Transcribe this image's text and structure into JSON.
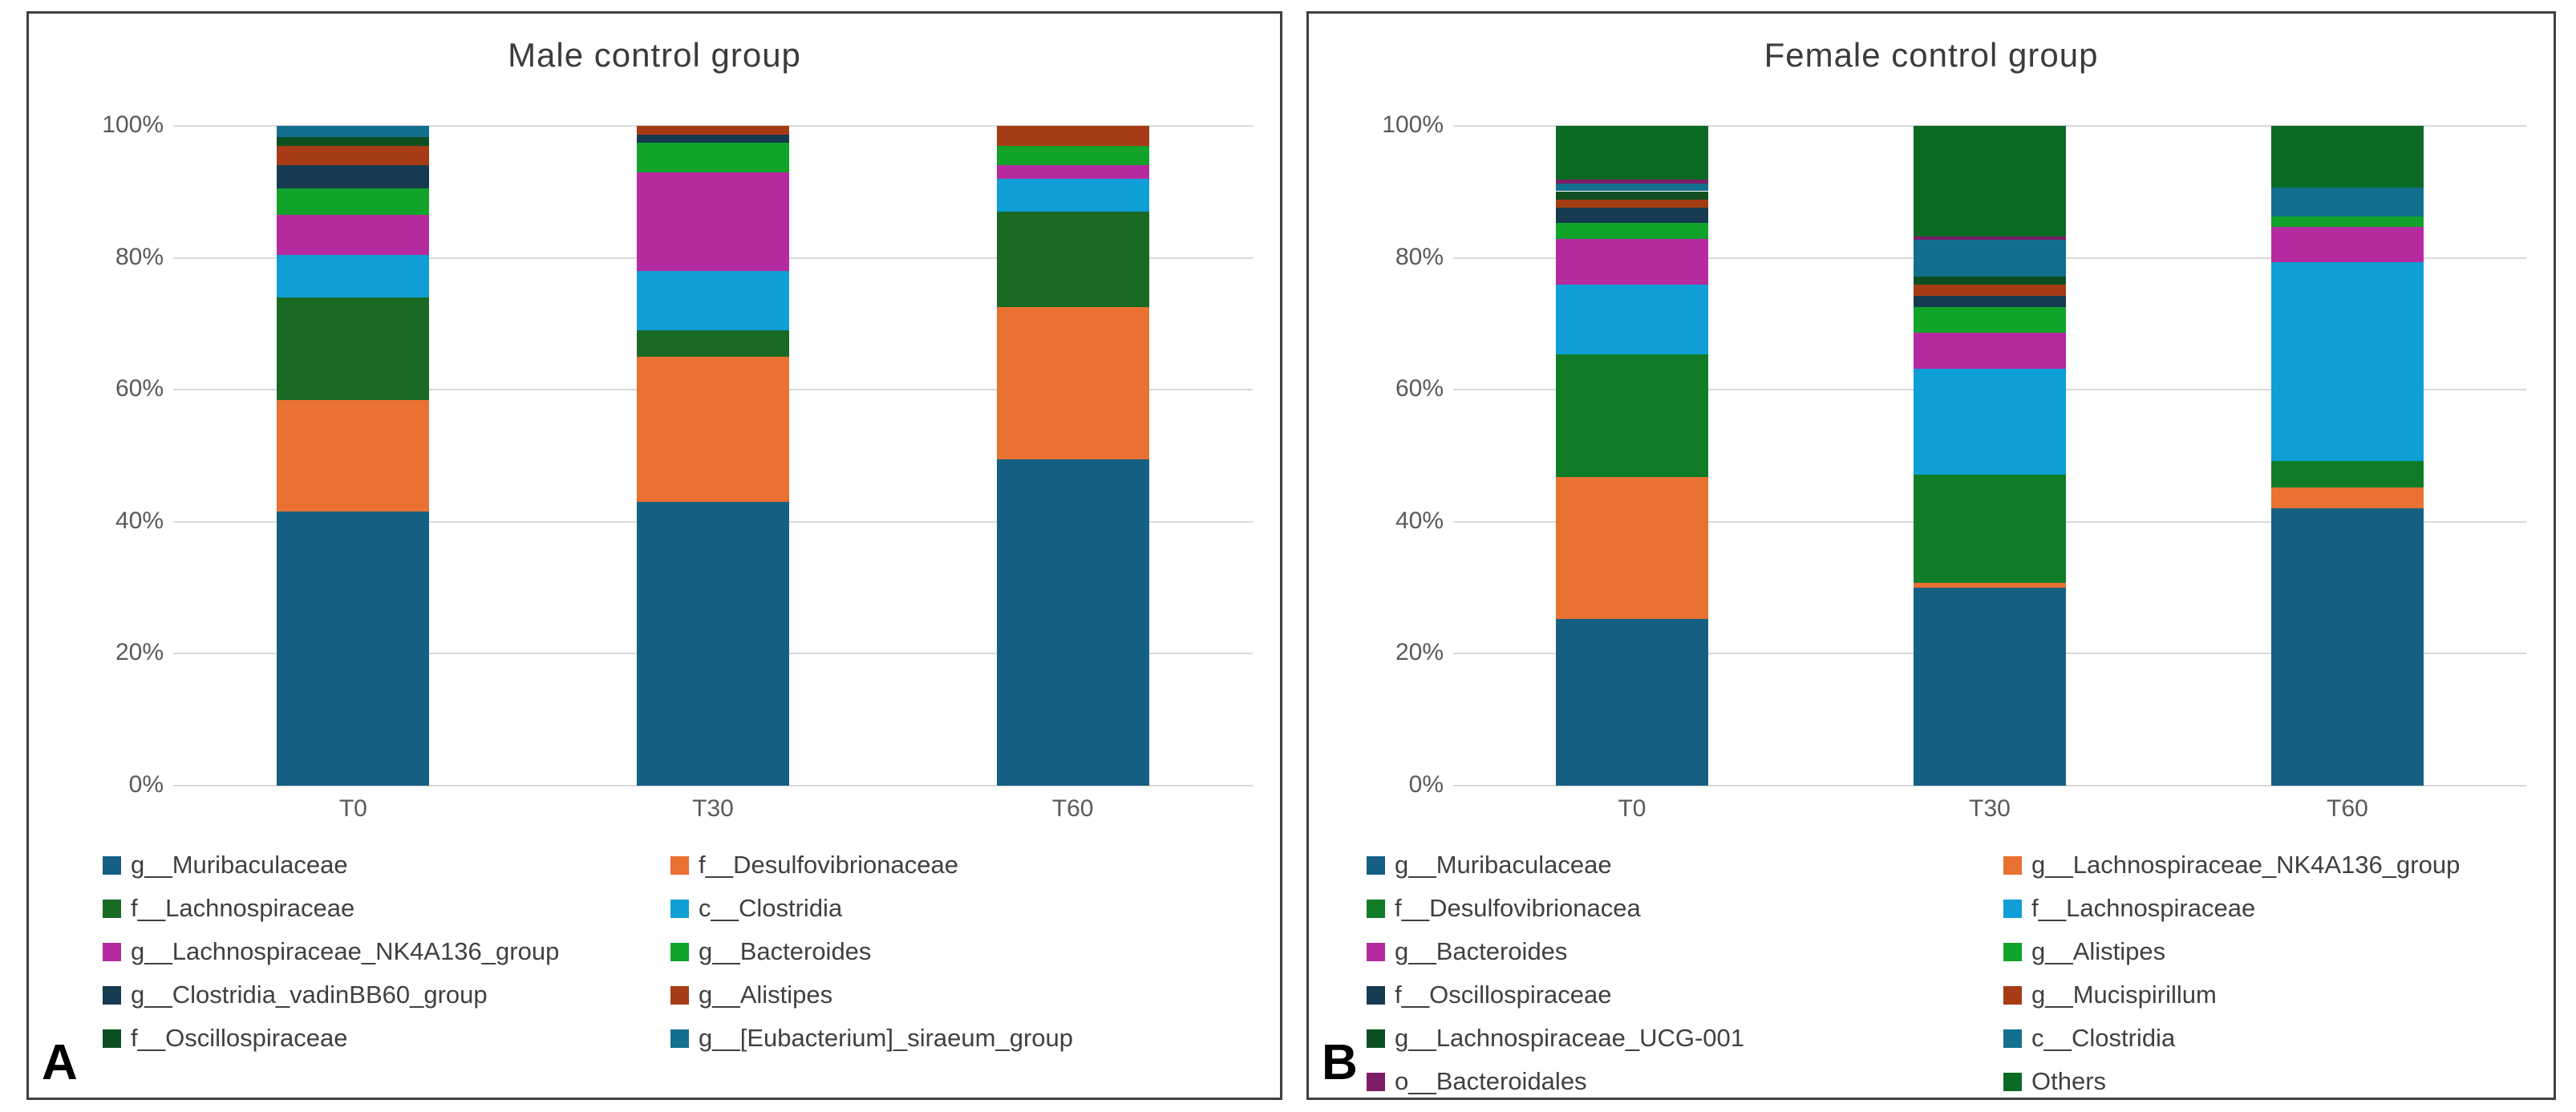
{
  "figure": {
    "background": "#ffffff",
    "panel_border_color": "#3f3f3f",
    "gridline_color": "#d9d9d9",
    "axis_text_color": "#595959",
    "title_text_color": "#3b3b3b"
  },
  "chart_data": [
    {
      "type": "bar",
      "stacked": true,
      "title": "Male control group",
      "corner_label": "A",
      "categories": [
        "T0",
        "T30",
        "T60"
      ],
      "xlabel": "",
      "ylabel": "",
      "ylim": [
        0,
        100
      ],
      "yticks": [
        "0%",
        "20%",
        "40%",
        "60%",
        "80%",
        "100%"
      ],
      "grid": true,
      "legend_position": "bottom-two-columns",
      "series": [
        {
          "name": "g__Muribaculaceae",
          "color": "#156082",
          "values": [
            41.5,
            43.0,
            49.5
          ]
        },
        {
          "name": "f__Desulfovibrionaceae",
          "color": "#E97132",
          "values": [
            17.0,
            22.0,
            23.0
          ]
        },
        {
          "name": "f__Lachnospiraceae",
          "color": "#196B24",
          "values": [
            15.5,
            4.0,
            14.5
          ]
        },
        {
          "name": "c__Clostridia",
          "color": "#0F9ED5",
          "values": [
            6.5,
            9.0,
            5.0
          ]
        },
        {
          "name": "g__Lachnospiraceae_NK4A136_group",
          "color": "#B62AA0",
          "values": [
            6.0,
            15.0,
            2.0
          ]
        },
        {
          "name": "g__Bacteroides",
          "color": "#12A32B",
          "values": [
            4.0,
            4.5,
            3.0
          ]
        },
        {
          "name": "g__Clostridia_vadinBB60_group",
          "color": "#163A50",
          "values": [
            3.5,
            1.2,
            0
          ]
        },
        {
          "name": "g__Alistipes",
          "color": "#A63C15",
          "values": [
            3.0,
            1.3,
            3.0
          ]
        },
        {
          "name": "f__Oscillospiraceae",
          "color": "#0D4F20",
          "values": [
            1.3,
            0,
            0
          ]
        },
        {
          "name": "g__[Eubacterium]_siraeum_group",
          "color": "#136F8E",
          "values": [
            1.7,
            0,
            0
          ]
        }
      ]
    },
    {
      "type": "bar",
      "stacked": true,
      "title": "Female control group",
      "corner_label": "B",
      "categories": [
        "T0",
        "T30",
        "T60"
      ],
      "xlabel": "",
      "ylabel": "",
      "ylim": [
        0,
        100
      ],
      "yticks": [
        "0%",
        "20%",
        "40%",
        "60%",
        "80%",
        "100%"
      ],
      "grid": true,
      "legend_position": "bottom-two-columns",
      "series": [
        {
          "name": "g__Muribaculaceae",
          "color": "#156082",
          "values": [
            25.3,
            30.0,
            42.0
          ]
        },
        {
          "name": "g__Lachnospiraceae_NK4A136_group",
          "color": "#E97132",
          "values": [
            21.5,
            0.7,
            3.2
          ]
        },
        {
          "name": "f__Desulfovibrionacea",
          "color": "#107C28",
          "values": [
            18.6,
            16.4,
            4.0
          ]
        },
        {
          "name": "f__Lachnospiraceae",
          "color": "#0F9ED5",
          "values": [
            10.5,
            16.1,
            30.2
          ]
        },
        {
          "name": "g__Bacteroides",
          "color": "#B62AA0",
          "values": [
            7.0,
            5.5,
            5.3
          ]
        },
        {
          "name": "g__Alistipes",
          "color": "#12A32B",
          "values": [
            2.4,
            3.8,
            1.6
          ]
        },
        {
          "name": "f__Oscillospiraceae",
          "color": "#163A50",
          "values": [
            2.3,
            1.7,
            0
          ]
        },
        {
          "name": "g__Mucispirillum",
          "color": "#A63C15",
          "values": [
            1.2,
            1.8,
            0
          ]
        },
        {
          "name": "g__Lachnospiraceae_UCG-001",
          "color": "#0D4F20",
          "values": [
            1.3,
            1.2,
            0
          ]
        },
        {
          "name": "c__Clostridia",
          "color": "#136F8E",
          "values": [
            1.2,
            5.5,
            4.4
          ]
        },
        {
          "name": "o__Bacteroidales",
          "color": "#7D1D66",
          "values": [
            0.6,
            0.5,
            0
          ]
        },
        {
          "name": "Others",
          "color": "#0B6B24",
          "values": [
            8.1,
            16.8,
            9.3
          ]
        }
      ]
    }
  ]
}
